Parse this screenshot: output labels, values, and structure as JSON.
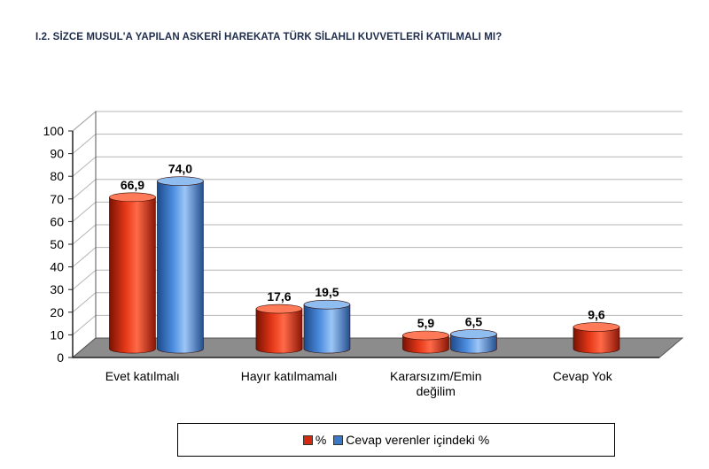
{
  "chart_data": {
    "type": "bar",
    "title": "I.2. SİZCE MUSUL'A YAPILAN ASKERİ HAREKATA TÜRK SİLAHLI KUVVETLERİ KATILMALI MI?",
    "categories": [
      "Evet katılmalı",
      "Hayır katılmamalı",
      "Kararsızım/Emin değilim",
      "Cevap Yok"
    ],
    "category_lines": [
      [
        "Evet katılmalı"
      ],
      [
        "Hayır katılmamalı"
      ],
      [
        "Kararsızım/Emin",
        "değilim"
      ],
      [
        "Cevap Yok"
      ]
    ],
    "series": [
      {
        "name": "%",
        "values": [
          66.9,
          17.6,
          5.9,
          9.6
        ],
        "labels": [
          "66,9",
          "17,6",
          "5,9",
          "9,6"
        ],
        "color": "#d42a10"
      },
      {
        "name": "Cevap verenler içindeki %",
        "values": [
          74.0,
          19.5,
          6.5,
          null
        ],
        "labels": [
          "74,0",
          "19,5",
          "6,5",
          null
        ],
        "color": "#3a78c8"
      }
    ],
    "y_ticks": [
      "0",
      "10",
      "20",
      "30",
      "40",
      "50",
      "60",
      "70",
      "80",
      "90",
      "100"
    ],
    "ylim": [
      0,
      100
    ],
    "grid": true,
    "legend_position": "bottom",
    "style": "3d-cylinder"
  }
}
